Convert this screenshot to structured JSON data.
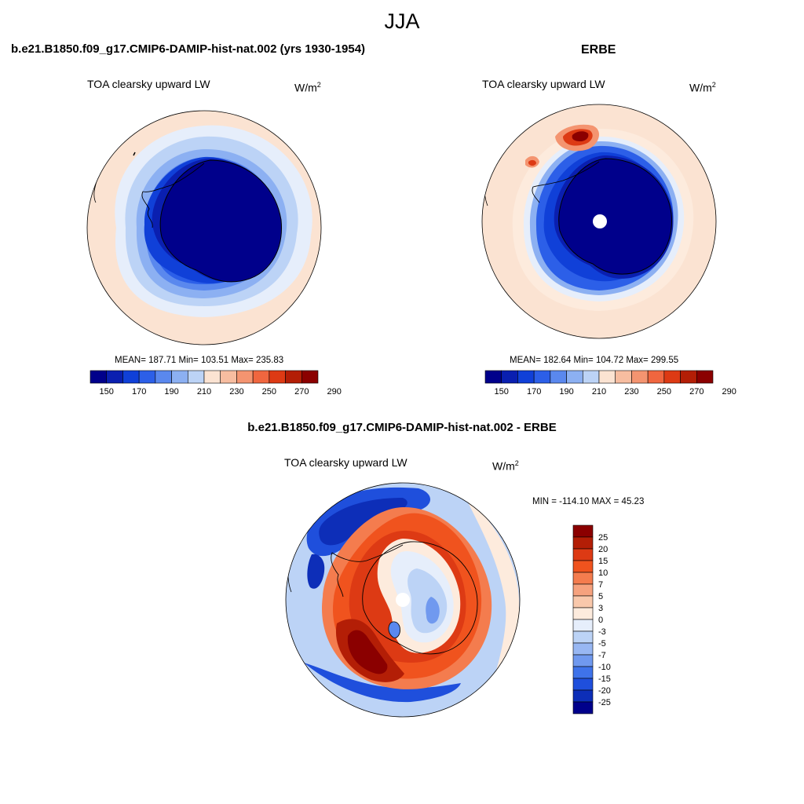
{
  "season": "JJA",
  "panels": [
    {
      "id": "model",
      "title": "b.e21.B1850.f09_g17.CMIP6-DAMIP-hist-nat.002 (yrs 1930-1954)",
      "variable": "TOA clearsky upward LW",
      "units_base": "W/m",
      "units_exp": "2",
      "stats": "MEAN= 187.71  Min= 103.51  Max= 235.83"
    },
    {
      "id": "obs",
      "title": "ERBE",
      "variable": "TOA clearsky upward LW",
      "units_base": "W/m",
      "units_exp": "2",
      "stats": "MEAN= 182.64  Min= 104.72  Max= 299.55"
    },
    {
      "id": "diff",
      "title": "b.e21.B1850.f09_g17.CMIP6-DAMIP-hist-nat.002 - ERBE",
      "variable": "TOA clearsky upward LW",
      "units_base": "W/m",
      "units_exp": "2",
      "stats": "MIN = -114.10 MAX =  45.23"
    }
  ],
  "colorbar_abs": {
    "colors": [
      "#00008b",
      "#0a1fb0",
      "#1040d8",
      "#2c5fe8",
      "#5a88ee",
      "#8cb0f2",
      "#bcd3f6",
      "#fbe3d2",
      "#f7bda0",
      "#f49470",
      "#f0663f",
      "#dd3a14",
      "#b31e06",
      "#8b0000"
    ],
    "tick_labels": [
      "150",
      "170",
      "190",
      "210",
      "230",
      "250",
      "270",
      "290"
    ]
  },
  "colorbar_diff": {
    "colors": [
      "#8b0000",
      "#b31e06",
      "#dd3a14",
      "#f0531e",
      "#f47c4e",
      "#f6a27e",
      "#f9c8ab",
      "#fdebdd",
      "#e6eefb",
      "#bcd3f6",
      "#98b7f3",
      "#7099ef",
      "#3f73ea",
      "#1f4fdc",
      "#0d2eb8",
      "#00008b"
    ],
    "tick_labels": [
      "25",
      "20",
      "15",
      "10",
      "7",
      "5",
      "3",
      "0",
      "-3",
      "-5",
      "-7",
      "-10",
      "-15",
      "-20",
      "-25"
    ]
  }
}
